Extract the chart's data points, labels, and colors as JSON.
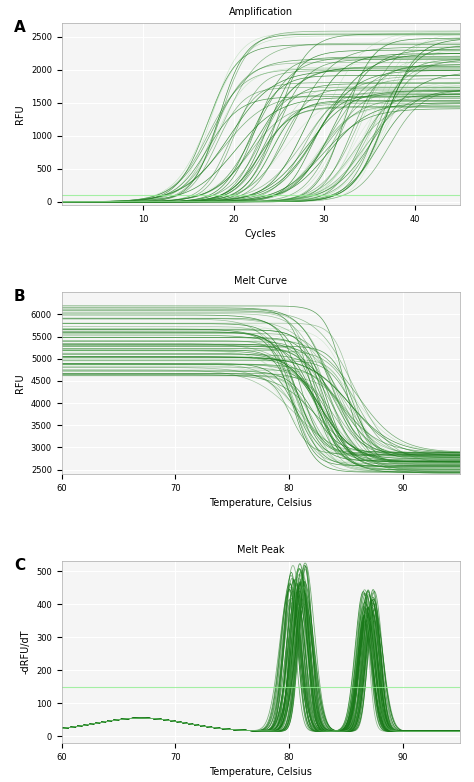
{
  "panel_A": {
    "title": "Amplification",
    "xlabel": "Cycles",
    "ylabel": "RFU",
    "xlim": [
      1,
      45
    ],
    "ylim": [
      -50,
      2700
    ],
    "xticks": [
      10,
      20,
      30,
      40
    ],
    "yticks": [
      0,
      500,
      1000,
      1500,
      2000,
      2500
    ],
    "n_curves": 60,
    "n_curves_light": 20,
    "threshold_y": 100,
    "threshold_color": "#90ee90",
    "bg_color": "#f5f5f5",
    "grid_color": "#ffffff",
    "curve_color_dark": "#1a7a1a",
    "curve_color_light": "#7dc87d"
  },
  "panel_B": {
    "title": "Melt Curve",
    "xlabel": "Temperature, Celsius",
    "ylabel": "RFU",
    "xlim": [
      60,
      95
    ],
    "ylim": [
      2400,
      6500
    ],
    "xticks": [
      60,
      70,
      80,
      90
    ],
    "yticks": [
      2500,
      3000,
      3500,
      4000,
      4500,
      5000,
      5500,
      6000
    ],
    "n_curves": 60,
    "n_curves_light": 15,
    "bg_color": "#f5f5f5",
    "grid_color": "#ffffff",
    "curve_color_dark": "#1a7a1a",
    "curve_color_light": "#7dc87d"
  },
  "panel_C": {
    "title": "Melt Peak",
    "xlabel": "Temperature, Celsius",
    "ylabel": "-dRFU/dT",
    "xlim": [
      60,
      95
    ],
    "ylim": [
      -20,
      530
    ],
    "xticks": [
      60,
      70,
      80,
      90
    ],
    "yticks": [
      0,
      100,
      200,
      300,
      400,
      500
    ],
    "n_curves": 60,
    "n_curves_light": 5,
    "threshold_y": 150,
    "threshold_color": "#90ee90",
    "bg_color": "#f5f5f5",
    "grid_color": "#ffffff",
    "curve_color_dark": "#1a7a1a",
    "curve_color_light": "#7dc87d"
  },
  "figure_bg": "#ffffff",
  "label_fontsize": 7,
  "title_fontsize": 7,
  "tick_fontsize": 6
}
